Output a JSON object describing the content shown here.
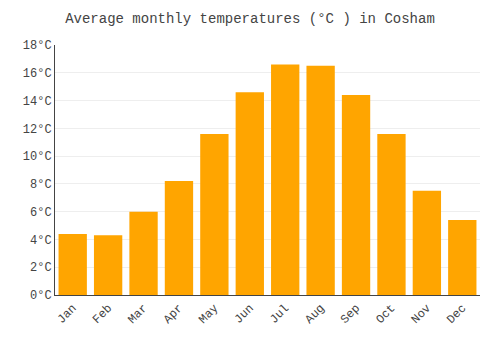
{
  "chart_data": {
    "type": "bar",
    "title": "Average monthly temperatures (°C ) in Cosham",
    "categories": [
      "Jan",
      "Feb",
      "Mar",
      "Apr",
      "May",
      "Jun",
      "Jul",
      "Aug",
      "Sep",
      "Oct",
      "Nov",
      "Dec"
    ],
    "values": [
      4.4,
      4.3,
      6.0,
      8.2,
      11.6,
      14.6,
      16.6,
      16.5,
      14.4,
      11.6,
      7.5,
      5.4
    ],
    "color": "#FFA500",
    "ylim": [
      0,
      18
    ],
    "yticks": [
      {
        "value": 0,
        "label": "0°C"
      },
      {
        "value": 2,
        "label": "2°C"
      },
      {
        "value": 4,
        "label": "4°C"
      },
      {
        "value": 6,
        "label": "6°C"
      },
      {
        "value": 8,
        "label": "8°C"
      },
      {
        "value": 10,
        "label": "10°C"
      },
      {
        "value": 12,
        "label": "12°C"
      },
      {
        "value": 14,
        "label": "14°C"
      },
      {
        "value": 16,
        "label": "16°C"
      },
      {
        "value": 18,
        "label": "18°C"
      }
    ],
    "grid": true
  }
}
